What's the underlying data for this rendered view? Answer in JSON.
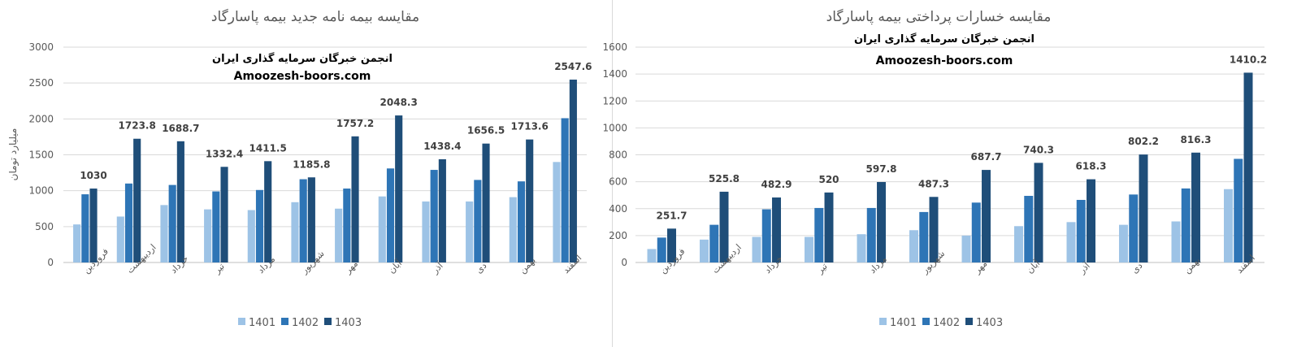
{
  "colors": {
    "s1401": "#9dc3e6",
    "s1402": "#2e75b6",
    "s1403": "#1f4e79",
    "grid": "#d9d9d9",
    "axis": "#bfbfbf"
  },
  "chart_data": [
    {
      "type": "bar",
      "title": "مقایسه بیمه نامه جدید بیمه پاسارگاد",
      "ylabel": "میلیارد تومان",
      "xlabel": "",
      "ylim": [
        0,
        3000
      ],
      "yticks": [
        0,
        500,
        1000,
        1500,
        2000,
        2500,
        3000
      ],
      "grid": true,
      "legend": "bottom",
      "watermark": {
        "line1": "انجمن خبرگان سرمایه گذاری ایران",
        "line2": "Amoozesh-boors.com"
      },
      "categories": [
        "فروردین",
        "اردیبهشت",
        "خرداد",
        "تیر",
        "مرداد",
        "شهریور",
        "مهر",
        "آبان",
        "آذر",
        "دی",
        "بهمن",
        "اسفند"
      ],
      "series": [
        {
          "name": "1401",
          "values": [
            530,
            640,
            800,
            740,
            730,
            840,
            750,
            920,
            850,
            850,
            910,
            1400
          ]
        },
        {
          "name": "1402",
          "values": [
            950,
            1100,
            1080,
            990,
            1010,
            1160,
            1030,
            1310,
            1290,
            1150,
            1130,
            2010
          ]
        },
        {
          "name": "1403",
          "values": [
            1030,
            1723.8,
            1688.7,
            1332.4,
            1411.5,
            1185.8,
            1757.2,
            2048.3,
            1438.4,
            1656.5,
            1713.6,
            2547.6
          ]
        }
      ],
      "data_labels": [
        "1030",
        "1723.8",
        "1688.7",
        "1332.4",
        "1411.5",
        "1185.8",
        "1757.2",
        "2048.3",
        "1438.4",
        "1656.5",
        "1713.6",
        "2547.6"
      ]
    },
    {
      "type": "bar",
      "title": "مقایسه خسارات پرداختی بیمه پاسارگاد",
      "ylabel": "",
      "xlabel": "",
      "ylim": [
        0,
        1600
      ],
      "yticks": [
        0,
        200,
        400,
        600,
        800,
        1000,
        1200,
        1400,
        1600
      ],
      "grid": true,
      "legend": "bottom",
      "watermark": {
        "line1": "انجمن خبرگان سرمایه گذاری ایران",
        "line2": "Amoozesh-boors.com"
      },
      "categories": [
        "فروردین",
        "اردیبهشت",
        "خرداد",
        "تیر",
        "مرداد",
        "شهریور",
        "مهر",
        "آبان",
        "آذر",
        "دی",
        "بهمن",
        "اسفند"
      ],
      "series": [
        {
          "name": "1401",
          "values": [
            100,
            170,
            190,
            190,
            210,
            240,
            200,
            270,
            300,
            280,
            305,
            545
          ]
        },
        {
          "name": "1402",
          "values": [
            185,
            280,
            395,
            405,
            405,
            375,
            445,
            495,
            465,
            505,
            550,
            770
          ]
        },
        {
          "name": "1403",
          "values": [
            251.7,
            525.8,
            482.9,
            520,
            597.8,
            487.3,
            687.7,
            740.3,
            618.3,
            802.2,
            816.3,
            1410.2
          ]
        }
      ],
      "data_labels": [
        "251.7",
        "525.8",
        "482.9",
        "520",
        "597.8",
        "487.3",
        "687.7",
        "740.3",
        "618.3",
        "802.2",
        "816.3",
        "1410.2"
      ]
    }
  ]
}
